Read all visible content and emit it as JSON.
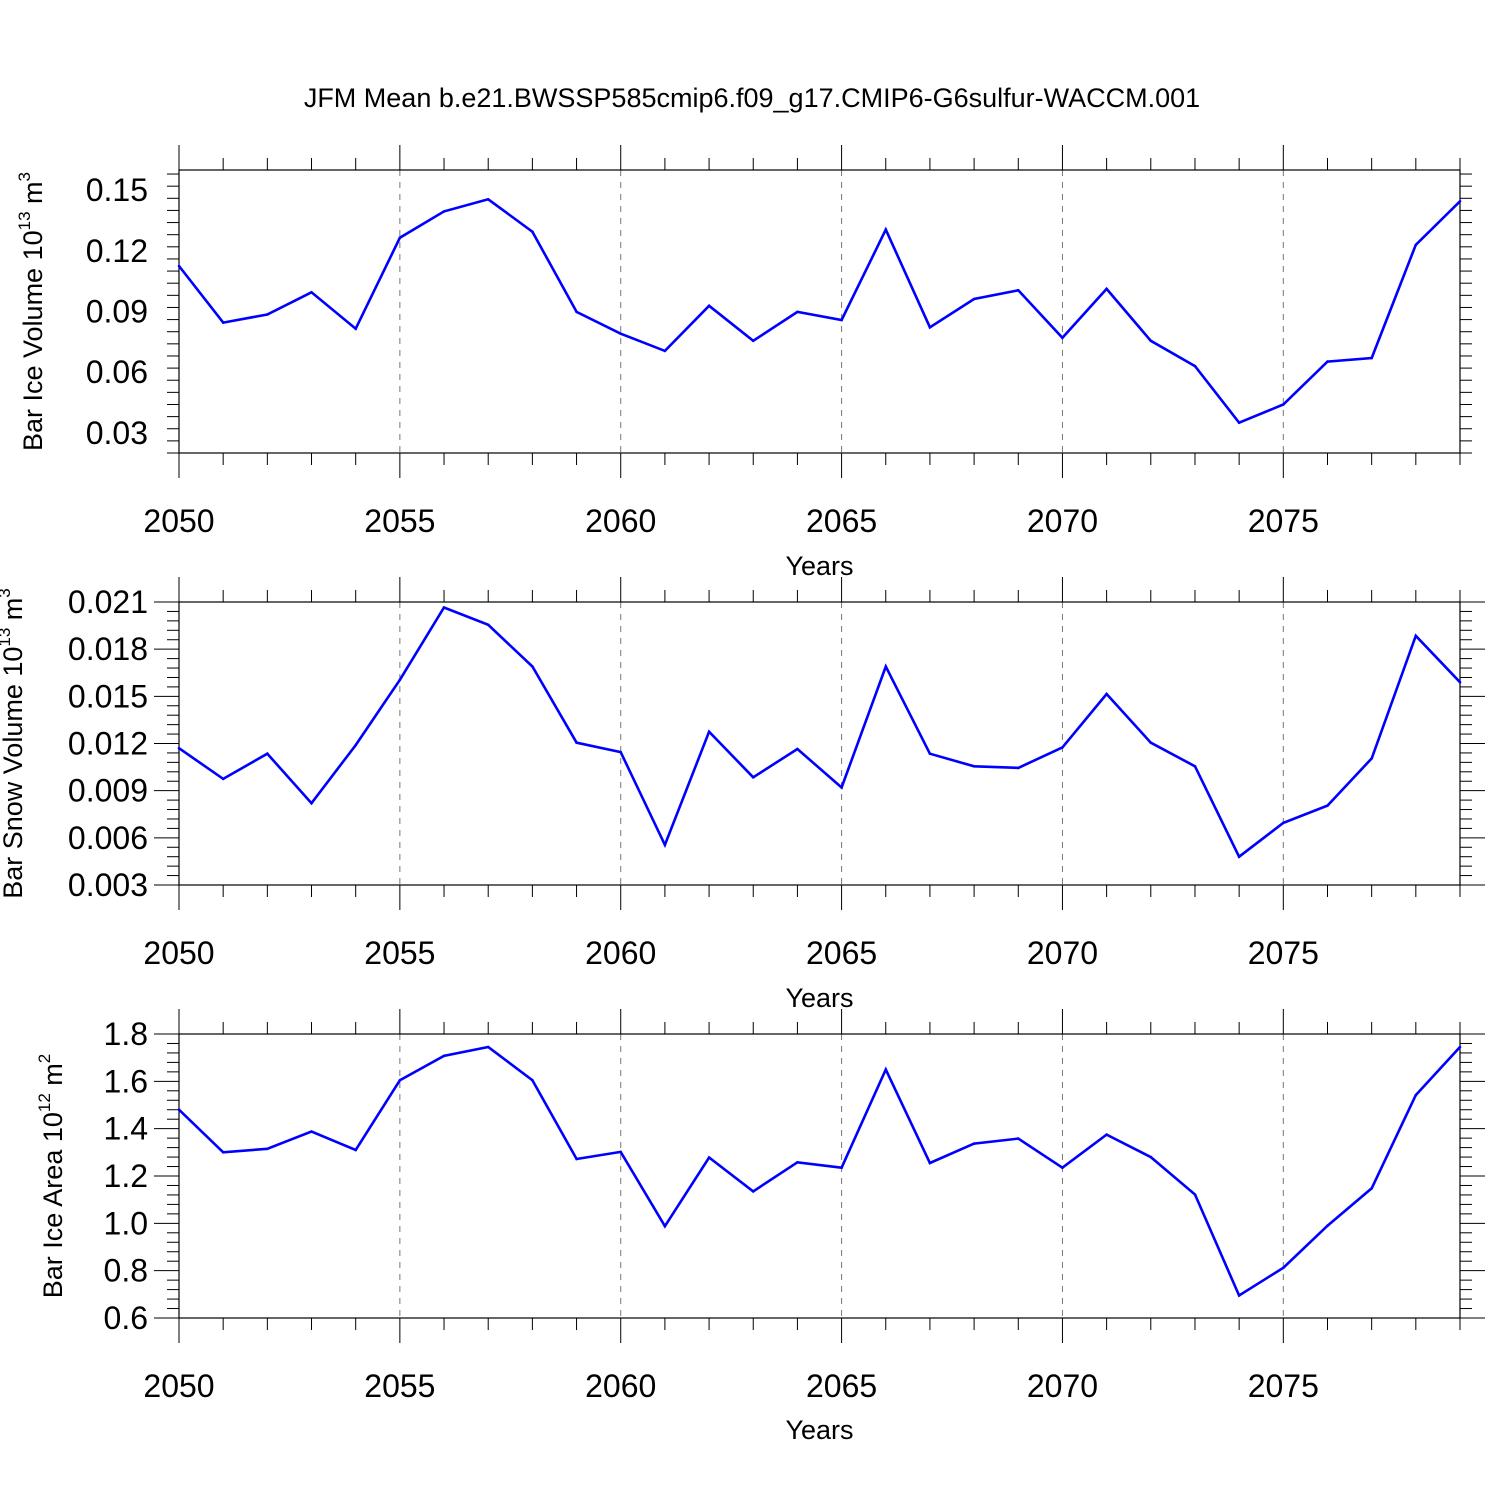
{
  "title": "JFM Mean b.e21.BWSSP585cmip6.f09_g17.CMIP6-G6sulfur-WACCM.001",
  "colors": {
    "line": "#0000ff",
    "axis": "#000000",
    "grid": "#777777"
  },
  "chart_data": [
    {
      "type": "line",
      "name": "ice-volume",
      "ylabel": {
        "prefix": "Bar Ice Volume 10",
        "exp": "13",
        "unit": " m",
        "unitexp": "3"
      },
      "xlabel": "Years",
      "xlim": [
        2050,
        2079
      ],
      "ylim": [
        0.02,
        0.16
      ],
      "xticks": [
        "2050",
        "2055",
        "2060",
        "2065",
        "2070",
        "2075"
      ],
      "yticks": [
        "0.03",
        "0.06",
        "0.09",
        "0.12",
        "0.15"
      ],
      "x": [
        2050,
        2051,
        2052,
        2053,
        2054,
        2055,
        2056,
        2057,
        2058,
        2059,
        2060,
        2061,
        2062,
        2063,
        2064,
        2065,
        2066,
        2067,
        2068,
        2069,
        2070,
        2071,
        2072,
        2073,
        2074,
        2075,
        2076,
        2077,
        2078,
        2079
      ],
      "values": [
        0.1125,
        0.0845,
        0.0885,
        0.0995,
        0.0815,
        0.1265,
        0.1395,
        0.1455,
        0.1295,
        0.0898,
        0.079,
        0.0705,
        0.0928,
        0.0755,
        0.0898,
        0.0858,
        0.1305,
        0.0822,
        0.0962,
        0.1005,
        0.077,
        0.1012,
        0.0755,
        0.063,
        0.035,
        0.044,
        0.0652,
        0.067,
        0.123,
        0.1445
      ]
    },
    {
      "type": "line",
      "name": "snow-volume",
      "ylabel": {
        "prefix": "Bar Snow Volume 10",
        "exp": "13",
        "unit": " m",
        "unitexp": "3"
      },
      "xlabel": "Years",
      "xlim": [
        2050,
        2079
      ],
      "ylim": [
        0.003,
        0.021
      ],
      "xticks": [
        "2050",
        "2055",
        "2060",
        "2065",
        "2070",
        "2075"
      ],
      "yticks": [
        "0.003",
        "0.006",
        "0.009",
        "0.012",
        "0.015",
        "0.018",
        "0.021"
      ],
      "x": [
        2050,
        2051,
        2052,
        2053,
        2054,
        2055,
        2056,
        2057,
        2058,
        2059,
        2060,
        2061,
        2062,
        2063,
        2064,
        2065,
        2066,
        2067,
        2068,
        2069,
        2070,
        2071,
        2072,
        2073,
        2074,
        2075,
        2076,
        2077,
        2078,
        2079
      ],
      "values": [
        0.0117,
        0.00975,
        0.01135,
        0.0082,
        0.0119,
        0.01605,
        0.02065,
        0.01955,
        0.0169,
        0.01205,
        0.01145,
        0.00555,
        0.01275,
        0.00985,
        0.01165,
        0.0092,
        0.0169,
        0.01135,
        0.01055,
        0.01045,
        0.01175,
        0.01515,
        0.01205,
        0.01055,
        0.0048,
        0.00695,
        0.00805,
        0.01105,
        0.01885,
        0.0159
      ]
    },
    {
      "type": "line",
      "name": "ice-area",
      "ylabel": {
        "prefix": "Bar Ice Area 10",
        "exp": "12",
        "unit": " m",
        "unitexp": "2"
      },
      "xlabel": "Years",
      "xlim": [
        2050,
        2079
      ],
      "ylim": [
        0.6,
        1.8
      ],
      "xticks": [
        "2050",
        "2055",
        "2060",
        "2065",
        "2070",
        "2075"
      ],
      "yticks": [
        "0.6",
        "0.8",
        "1.0",
        "1.2",
        "1.4",
        "1.6",
        "1.8"
      ],
      "x": [
        2050,
        2051,
        2052,
        2053,
        2054,
        2055,
        2056,
        2057,
        2058,
        2059,
        2060,
        2061,
        2062,
        2063,
        2064,
        2065,
        2066,
        2067,
        2068,
        2069,
        2070,
        2071,
        2072,
        2073,
        2074,
        2075,
        2076,
        2077,
        2078,
        2079
      ],
      "values": [
        1.48,
        1.3,
        1.315,
        1.388,
        1.31,
        1.605,
        1.708,
        1.745,
        1.605,
        1.272,
        1.302,
        0.988,
        1.278,
        1.135,
        1.258,
        1.235,
        1.65,
        1.255,
        1.337,
        1.358,
        1.235,
        1.375,
        1.28,
        1.122,
        0.695,
        0.812,
        0.99,
        1.148,
        1.542,
        1.745
      ]
    }
  ]
}
